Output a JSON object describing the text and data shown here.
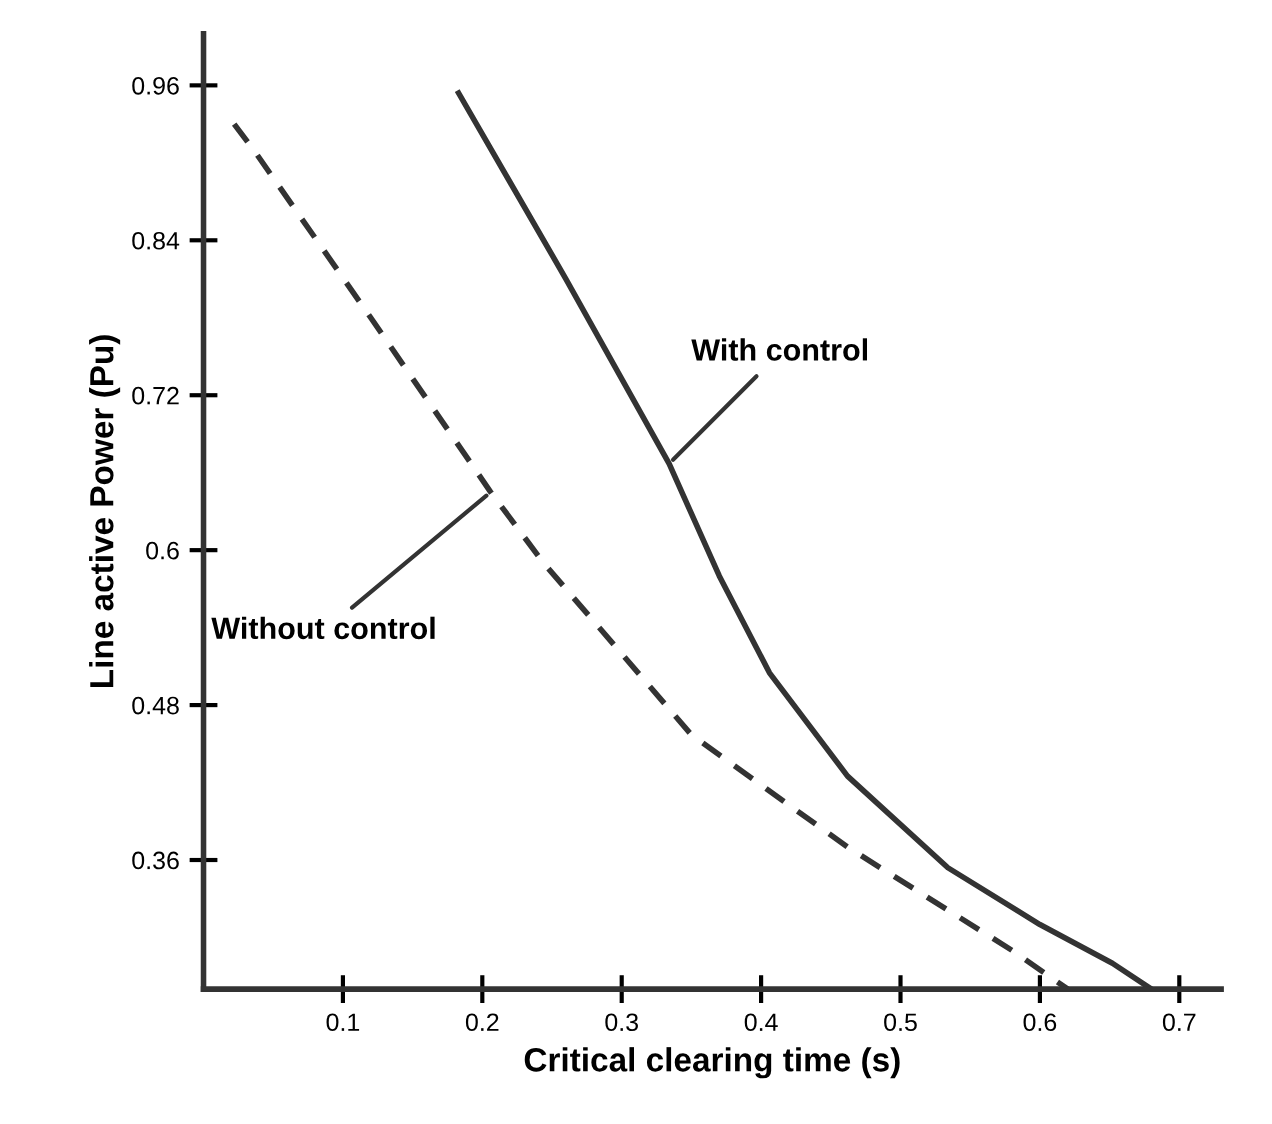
{
  "chart_data": {
    "type": "line",
    "xlabel": "Critical clearing time (s)",
    "ylabel": "Line active Power (Pu)",
    "xlim": [
      0,
      0.73
    ],
    "ylim": [
      0.26,
      1.0
    ],
    "xticks": [
      0.1,
      0.2,
      0.3,
      0.4,
      0.5,
      0.6,
      0.7
    ],
    "yticks": [
      0.96,
      0.84,
      0.72,
      0.6,
      0.48,
      0.36
    ],
    "grid": false,
    "legend": false,
    "series": [
      {
        "color": "#333333",
        "line_style": "solid",
        "x": [
          0.183,
          0.26,
          0.334,
          0.37,
          0.406,
          0.462,
          0.534,
          0.6,
          0.652,
          0.68
        ],
        "values": [
          0.954,
          0.81,
          0.667,
          0.58,
          0.505,
          0.425,
          0.354,
          0.31,
          0.28,
          0.26
        ]
      },
      {
        "color": "#333333",
        "line_style": "dashed",
        "x": [
          0.022,
          0.036,
          0.12,
          0.206,
          0.244,
          0.35,
          0.462,
          0.58,
          0.62
        ],
        "values": [
          0.93,
          0.91,
          0.78,
          0.645,
          0.59,
          0.457,
          0.37,
          0.29,
          0.26
        ]
      }
    ],
    "annotations": [
      {
        "text": "With control",
        "x": 0.334,
        "y": 0.667
      },
      {
        "text": "Without control",
        "x": 0.206,
        "y": 0.645
      }
    ]
  }
}
